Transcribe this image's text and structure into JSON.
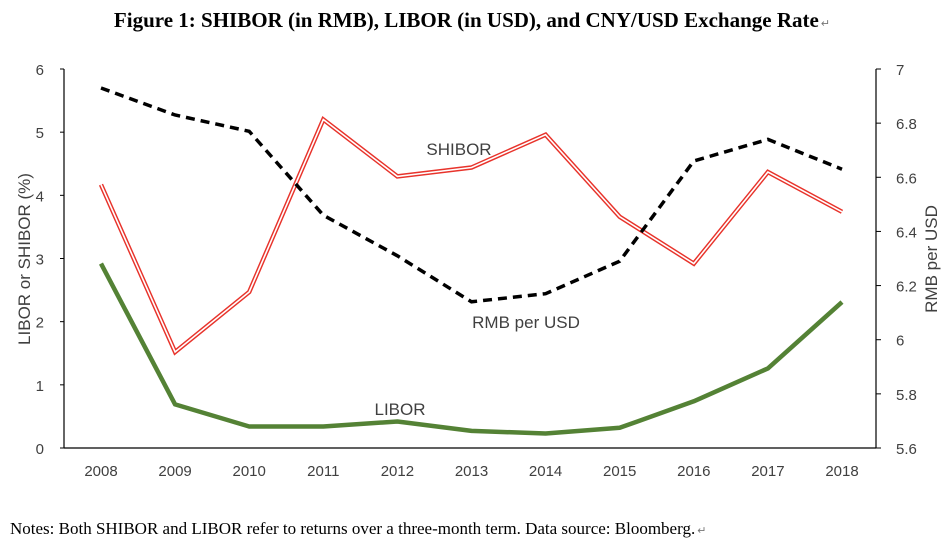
{
  "title": "Figure 1: SHIBOR (in RMB), LIBOR (in USD), and CNY/USD Exchange Rate",
  "title_mark": "↵",
  "notes": "Notes: Both SHIBOR and LIBOR refer to returns over a three-month term. Data source: Bloomberg.",
  "notes_mark": "↵",
  "chart_data": {
    "type": "line",
    "x": [
      "2008",
      "2009",
      "2010",
      "2011",
      "2012",
      "2013",
      "2014",
      "2015",
      "2016",
      "2017",
      "2018"
    ],
    "ylabel": "LIBOR or SHIBOR (%)",
    "ylim": [
      0,
      6
    ],
    "yticks": [
      "0",
      "1",
      "2",
      "3",
      "4",
      "5",
      "6"
    ],
    "y2label": "RMB per USD",
    "y2lim": [
      5.6,
      7
    ],
    "y2ticks": [
      "5.6",
      "5.8",
      "6",
      "6.2",
      "6.4",
      "6.6",
      "6.8",
      "7"
    ],
    "grid": false,
    "legend": "none (direct labels)",
    "series": [
      {
        "name": "SHIBOR",
        "axis": "left",
        "color": "#e8332b",
        "style": "double-line",
        "values": [
          4.17,
          1.52,
          2.47,
          5.2,
          4.3,
          4.44,
          4.96,
          3.66,
          2.92,
          4.37,
          3.74
        ]
      },
      {
        "name": "LIBOR",
        "axis": "left",
        "color": "#548235",
        "style": "thick-solid",
        "values": [
          2.92,
          0.69,
          0.34,
          0.34,
          0.42,
          0.27,
          0.23,
          0.32,
          0.74,
          1.26,
          2.31
        ]
      },
      {
        "name": "RMB per USD",
        "axis": "right",
        "color": "#000000",
        "style": "dashed",
        "values": [
          6.93,
          6.83,
          6.77,
          6.46,
          6.31,
          6.14,
          6.17,
          6.29,
          6.66,
          6.74,
          6.63
        ]
      }
    ]
  }
}
